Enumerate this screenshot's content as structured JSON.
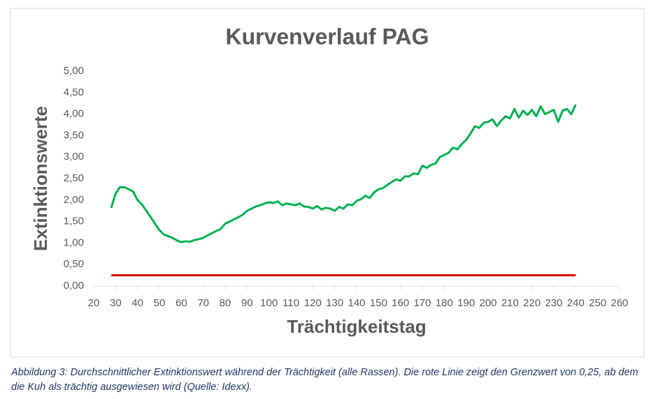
{
  "chart_data": {
    "type": "line",
    "title": "Kurvenverlauf PAG",
    "xlabel": "Trächtigkeitstag",
    "ylabel": "Extinktionswerte",
    "xlim": [
      20,
      260
    ],
    "xticks": [
      20,
      30,
      40,
      50,
      60,
      70,
      80,
      90,
      100,
      110,
      120,
      130,
      140,
      150,
      160,
      170,
      180,
      190,
      200,
      210,
      220,
      230,
      240,
      250,
      260
    ],
    "ylim": [
      0,
      5
    ],
    "yticks": [
      {
        "value": 0,
        "label": "0,00"
      },
      {
        "value": 0.5,
        "label": "0,50"
      },
      {
        "value": 1,
        "label": "1,00"
      },
      {
        "value": 1.5,
        "label": "1,50"
      },
      {
        "value": 2,
        "label": "2,00"
      },
      {
        "value": 2.5,
        "label": "2,50"
      },
      {
        "value": 3,
        "label": "3,00"
      },
      {
        "value": 3.5,
        "label": "3,50"
      },
      {
        "value": 4,
        "label": "4,00"
      },
      {
        "value": 4.5,
        "label": "4,50"
      },
      {
        "value": 5,
        "label": "5,00"
      }
    ],
    "grid": false,
    "series": [
      {
        "color": "#00b050",
        "x": [
          28,
          30,
          32,
          34,
          36,
          38,
          40,
          42,
          44,
          46,
          48,
          50,
          52,
          54,
          56,
          58,
          60,
          62,
          64,
          66,
          68,
          70,
          72,
          74,
          76,
          78,
          80,
          82,
          84,
          86,
          88,
          90,
          92,
          94,
          96,
          98,
          100,
          102,
          104,
          106,
          108,
          110,
          112,
          114,
          116,
          118,
          120,
          122,
          124,
          126,
          128,
          130,
          132,
          134,
          136,
          138,
          140,
          142,
          144,
          146,
          148,
          150,
          152,
          154,
          156,
          158,
          160,
          162,
          164,
          166,
          168,
          170,
          172,
          174,
          176,
          178,
          180,
          182,
          184,
          186,
          188,
          190,
          192,
          194,
          196,
          198,
          200,
          202,
          204,
          206,
          208,
          210,
          212,
          214,
          216,
          218,
          220,
          222,
          224,
          226,
          228,
          230,
          232,
          234,
          236,
          238,
          240
        ],
        "values": [
          1.82,
          2.15,
          2.3,
          2.3,
          2.25,
          2.2,
          2.0,
          1.9,
          1.75,
          1.6,
          1.45,
          1.3,
          1.2,
          1.16,
          1.12,
          1.06,
          1.02,
          1.04,
          1.03,
          1.07,
          1.09,
          1.12,
          1.18,
          1.23,
          1.28,
          1.33,
          1.45,
          1.5,
          1.55,
          1.6,
          1.66,
          1.75,
          1.8,
          1.85,
          1.88,
          1.92,
          1.95,
          1.93,
          1.97,
          1.88,
          1.92,
          1.9,
          1.88,
          1.92,
          1.85,
          1.84,
          1.8,
          1.86,
          1.78,
          1.82,
          1.8,
          1.75,
          1.84,
          1.8,
          1.9,
          1.88,
          1.98,
          2.02,
          2.1,
          2.05,
          2.18,
          2.25,
          2.28,
          2.35,
          2.42,
          2.48,
          2.45,
          2.55,
          2.55,
          2.62,
          2.6,
          2.8,
          2.75,
          2.82,
          2.85,
          3.0,
          3.05,
          3.1,
          3.22,
          3.18,
          3.3,
          3.4,
          3.55,
          3.72,
          3.68,
          3.8,
          3.82,
          3.88,
          3.72,
          3.85,
          3.95,
          3.9,
          4.12,
          3.92,
          4.08,
          3.98,
          4.1,
          3.95,
          4.18,
          4.0,
          4.05,
          4.1,
          3.82,
          4.08,
          4.12,
          4.0,
          4.22
        ]
      },
      {
        "color": "#e00000",
        "x": [
          28,
          240
        ],
        "values": [
          0.25,
          0.25
        ]
      }
    ]
  },
  "caption": "Abbildung 3: Durchschnittlicher Extinktionswert während der Trächtigkeit (alle Rassen). Die rote Linie zeigt den Grenzwert von 0,25, ab dem die Kuh als trächtig ausgewiesen wird (Quelle: Idexx)."
}
